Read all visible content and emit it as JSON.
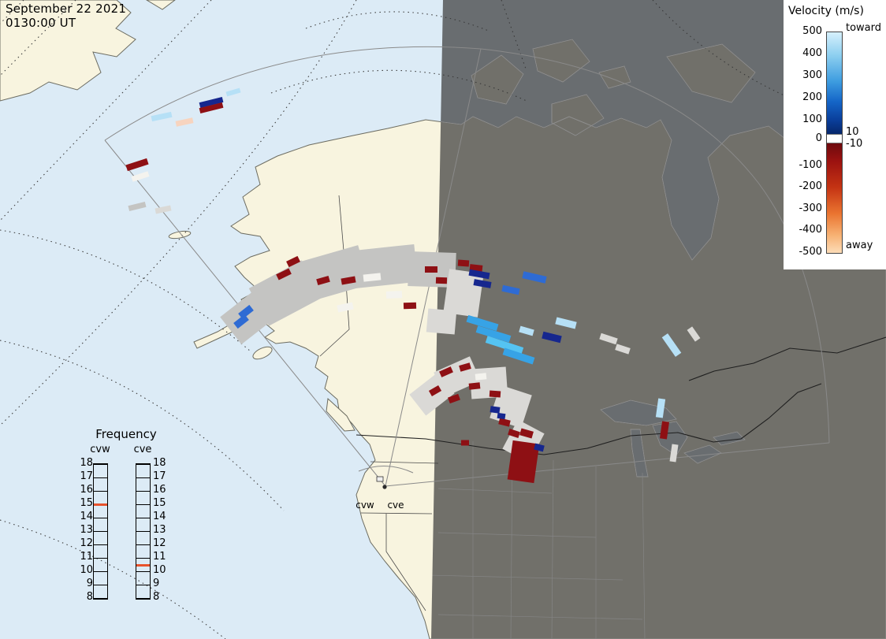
{
  "header": {
    "date": "September 22 2021",
    "time": "0130:00 UT"
  },
  "velocity_legend": {
    "title": "Velocity (m/s)",
    "toward": "toward",
    "away": "away",
    "upper_ticks": [
      "500",
      "400",
      "300",
      "200",
      "100",
      "0"
    ],
    "gap_ticks": [
      "10",
      "-10"
    ],
    "lower_ticks": [
      "-100",
      "-200",
      "-300",
      "-400",
      "-500"
    ],
    "toward_colors": [
      "#d6f0fc",
      "#8fd0f0",
      "#3e9de0",
      "#1566c8",
      "#0a3f9c",
      "#06276b"
    ],
    "away_colors": [
      "#6e0a0e",
      "#9b1210",
      "#c43313",
      "#ea7430",
      "#f7b274",
      "#fcdcb8"
    ]
  },
  "frequency_legend": {
    "title": "Frequency",
    "columns": [
      {
        "name": "cvw",
        "marker_value": 15
      },
      {
        "name": "cve",
        "marker_value": 10.5
      }
    ],
    "tick_labels": [
      "18",
      "17",
      "16",
      "15",
      "14",
      "13",
      "12",
      "11",
      "10",
      "9",
      "8"
    ],
    "marker_color": "#e8532c"
  },
  "radar_labels": {
    "west": "cvw",
    "east": "cve"
  },
  "map_colors": {
    "ocean": "#dcebf6",
    "land": "#f8f4df",
    "coast": "#6b6b60",
    "night_fill": "#383838",
    "night_coast": "#8f8f8f",
    "border": "#1f1f1f",
    "state_line": "#858585",
    "fan_line": "#8a8a8a",
    "graticule": "#3f3f3f"
  },
  "echo_colors": {
    "darkred": "#8e1014",
    "gray": "#c4c4c2",
    "lightgray": "#dad9d6",
    "navy": "#16278e",
    "blue": "#2e6bd4",
    "cyan": "#37a3e6",
    "cyan2": "#55c3f2",
    "lightblue": "#b6e0f6",
    "white": "#f4f3ee",
    "peach": "#f7d4bf"
  },
  "echoes": [
    [
      205,
      148,
      26,
      7,
      -12,
      "lightblue"
    ],
    [
      234,
      155,
      22,
      7,
      -12,
      "peach"
    ],
    [
      268,
      130,
      30,
      7,
      -14,
      "navy"
    ],
    [
      268,
      137,
      30,
      7,
      -14,
      "darkred"
    ],
    [
      296,
      117,
      18,
      6,
      -16,
      "lightblue"
    ],
    [
      174,
      209,
      28,
      8,
      -18,
      "darkred"
    ],
    [
      178,
      224,
      22,
      7,
      -18,
      "white"
    ],
    [
      174,
      262,
      22,
      7,
      -14,
      "gray"
    ],
    [
      207,
      266,
      20,
      7,
      -12,
      "lightgray"
    ],
    [
      318,
      400,
      64,
      44,
      -38,
      "gray"
    ],
    [
      362,
      372,
      76,
      54,
      -28,
      "gray"
    ],
    [
      420,
      348,
      86,
      52,
      -16,
      "gray"
    ],
    [
      488,
      338,
      80,
      48,
      -6,
      "gray"
    ],
    [
      548,
      342,
      60,
      44,
      2,
      "gray"
    ],
    [
      588,
      372,
      44,
      56,
      8,
      "lightgray"
    ],
    [
      560,
      408,
      36,
      30,
      5,
      "lightgray"
    ],
    [
      472,
      352,
      22,
      9,
      -6,
      "white"
    ],
    [
      500,
      374,
      20,
      9,
      -2,
      "white"
    ],
    [
      438,
      390,
      20,
      9,
      -12,
      "white"
    ],
    [
      312,
      396,
      18,
      9,
      -38,
      "blue"
    ],
    [
      306,
      408,
      18,
      9,
      -38,
      "blue"
    ],
    [
      360,
      348,
      18,
      8,
      -26,
      "darkred"
    ],
    [
      372,
      332,
      16,
      8,
      -26,
      "darkred"
    ],
    [
      410,
      356,
      16,
      8,
      -16,
      "darkred"
    ],
    [
      442,
      356,
      18,
      8,
      -10,
      "darkred"
    ],
    [
      520,
      388,
      16,
      8,
      -2,
      "darkred"
    ],
    [
      547,
      342,
      16,
      8,
      0,
      "darkred"
    ],
    [
      560,
      356,
      14,
      8,
      2,
      "darkred"
    ],
    [
      588,
      334,
      14,
      8,
      4,
      "darkred"
    ],
    [
      604,
      340,
      16,
      8,
      6,
      "darkred"
    ],
    [
      608,
      348,
      26,
      8,
      10,
      "navy"
    ],
    [
      612,
      360,
      22,
      8,
      10,
      "navy"
    ],
    [
      648,
      368,
      22,
      8,
      12,
      "blue"
    ],
    [
      678,
      352,
      30,
      9,
      13,
      "blue"
    ],
    [
      700,
      428,
      24,
      9,
      14,
      "navy"
    ],
    [
      718,
      410,
      26,
      9,
      14,
      "lightblue"
    ],
    [
      612,
      410,
      40,
      9,
      17,
      "cyan"
    ],
    [
      626,
      424,
      44,
      9,
      17,
      "cyan"
    ],
    [
      640,
      438,
      48,
      9,
      18,
      "cyan2"
    ],
    [
      658,
      452,
      40,
      9,
      18,
      "cyan"
    ],
    [
      668,
      420,
      18,
      8,
      16,
      "lightblue"
    ],
    [
      772,
      430,
      22,
      8,
      18,
      "lightgray"
    ],
    [
      790,
      443,
      18,
      8,
      18,
      "lightgray"
    ],
    [
      852,
      438,
      30,
      9,
      55,
      "lightblue"
    ],
    [
      880,
      424,
      18,
      8,
      55,
      "lightgray"
    ],
    [
      548,
      500,
      46,
      34,
      -38,
      "lightgray"
    ],
    [
      580,
      478,
      50,
      34,
      -24,
      "lightgray"
    ],
    [
      620,
      486,
      46,
      38,
      -4,
      "lightgray"
    ],
    [
      648,
      516,
      42,
      44,
      18,
      "lightgray"
    ],
    [
      664,
      560,
      38,
      42,
      28,
      "lightgray"
    ],
    [
      566,
      472,
      16,
      8,
      -24,
      "darkred"
    ],
    [
      590,
      466,
      14,
      8,
      -16,
      "darkred"
    ],
    [
      552,
      496,
      14,
      8,
      -30,
      "darkred"
    ],
    [
      576,
      506,
      14,
      8,
      -20,
      "darkred"
    ],
    [
      602,
      490,
      14,
      8,
      -6,
      "darkred"
    ],
    [
      628,
      500,
      14,
      8,
      4,
      "darkred"
    ],
    [
      640,
      536,
      14,
      8,
      14,
      "darkred"
    ],
    [
      652,
      550,
      14,
      8,
      18,
      "darkred"
    ],
    [
      590,
      562,
      10,
      7,
      0,
      "darkred"
    ],
    [
      668,
      550,
      16,
      9,
      16,
      "darkred"
    ],
    [
      664,
      586,
      34,
      50,
      8,
      "darkred"
    ],
    [
      628,
      520,
      12,
      8,
      8,
      "navy"
    ],
    [
      636,
      528,
      10,
      7,
      8,
      "navy"
    ],
    [
      684,
      568,
      12,
      8,
      14,
      "navy"
    ],
    [
      610,
      478,
      14,
      8,
      -6,
      "white"
    ],
    [
      838,
      518,
      9,
      24,
      8,
      "lightblue"
    ],
    [
      843,
      546,
      9,
      22,
      8,
      "darkred"
    ],
    [
      855,
      575,
      8,
      22,
      8,
      "lightgray"
    ]
  ]
}
